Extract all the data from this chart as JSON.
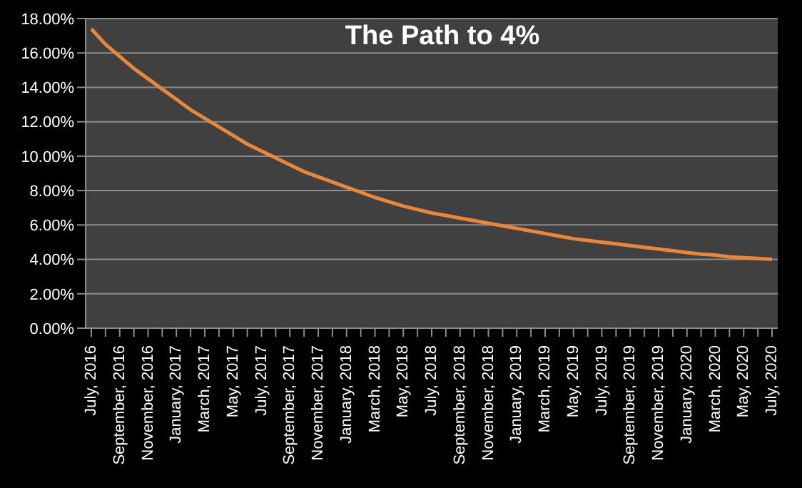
{
  "chart_data": {
    "type": "line",
    "title": "The Path to 4%",
    "categories": [
      "July, 2016",
      null,
      "September, 2016",
      null,
      "November, 2016",
      null,
      "January, 2017",
      null,
      "March, 2017",
      null,
      "May, 2017",
      null,
      "July, 2017",
      null,
      "September, 2017",
      null,
      "November, 2017",
      null,
      "January, 2018",
      null,
      "March, 2018",
      null,
      "May, 2018",
      null,
      "July, 2018",
      null,
      "September, 2018",
      null,
      "November, 2018",
      null,
      "January, 2019",
      null,
      "March, 2019",
      null,
      "May, 2019",
      null,
      "July, 2019",
      null,
      "September, 2019",
      null,
      "November, 2019",
      null,
      "January, 2020",
      null,
      "March, 2020",
      null,
      "May, 2020",
      null,
      "July, 2020"
    ],
    "series": [
      {
        "color": "#e8873a",
        "values": [
          17.4,
          16.5,
          15.8,
          15.1,
          14.5,
          13.9,
          13.3,
          12.7,
          12.2,
          11.7,
          11.2,
          10.7,
          10.3,
          9.9,
          9.5,
          9.1,
          8.8,
          8.5,
          8.2,
          7.9,
          7.6,
          7.35,
          7.1,
          6.9,
          6.7,
          6.55,
          6.4,
          6.25,
          6.1,
          5.95,
          5.8,
          5.65,
          5.5,
          5.35,
          5.2,
          5.1,
          5.0,
          4.9,
          4.8,
          4.7,
          4.6,
          4.5,
          4.4,
          4.3,
          4.25,
          4.15,
          4.1,
          4.05,
          4.0
        ]
      }
    ],
    "ylim": [
      0,
      18
    ],
    "yticks": [
      {
        "value": 0,
        "label": "0.00%"
      },
      {
        "value": 2,
        "label": "2.00%"
      },
      {
        "value": 4,
        "label": "4.00%"
      },
      {
        "value": 6,
        "label": "6.00%"
      },
      {
        "value": 8,
        "label": "8.00%"
      },
      {
        "value": 10,
        "label": "10.00%"
      },
      {
        "value": 12,
        "label": "12.00%"
      },
      {
        "value": 14,
        "label": "14.00%"
      },
      {
        "value": 16,
        "label": "16.00%"
      },
      {
        "value": 18,
        "label": "18.00%"
      }
    ],
    "grid": "y",
    "legend": false,
    "marker": "none",
    "line_style": "solid"
  }
}
